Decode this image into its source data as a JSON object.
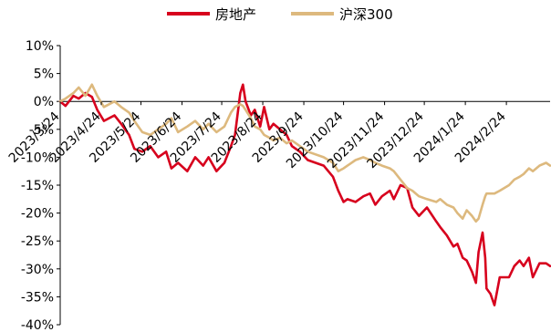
{
  "chart_data": {
    "type": "line",
    "title": "",
    "xlabel": "",
    "ylabel": "",
    "legend_position": "top-center",
    "grid": false,
    "x_ticks": [
      "2023/3/24",
      "2023/4/24",
      "2023/5/24",
      "2023/6/24",
      "2023/7/24",
      "2023/8/24",
      "2023/9/24",
      "2023/10/24",
      "2023/11/24",
      "2023/12/24",
      "2024/1/24",
      "2024/2/24"
    ],
    "y_ticks": [
      "10%",
      "5%",
      "0%",
      "-5%",
      "-10%",
      "-15%",
      "-20%",
      "-25%",
      "-30%",
      "-35%",
      "-40%"
    ],
    "ylim": [
      -40,
      10
    ],
    "x_range": [
      "2023/3/24",
      "2024/3/28"
    ],
    "series": [
      {
        "name": "房地产",
        "color": "#d7001d",
        "points": [
          [
            "2023/3/24",
            0.0
          ],
          [
            "2023/3/28",
            -0.8
          ],
          [
            "2023/4/3",
            1.0
          ],
          [
            "2023/4/7",
            0.5
          ],
          [
            "2023/4/12",
            1.5
          ],
          [
            "2023/4/17",
            0.8
          ],
          [
            "2023/4/21",
            -1.5
          ],
          [
            "2023/4/26",
            -3.5
          ],
          [
            "2023/5/4",
            -2.5
          ],
          [
            "2023/5/9",
            -4.0
          ],
          [
            "2023/5/15",
            -6.0
          ],
          [
            "2023/5/19",
            -8.5
          ],
          [
            "2023/5/25",
            -9.0
          ],
          [
            "2023/5/31",
            -8.0
          ],
          [
            "2023/6/6",
            -10.0
          ],
          [
            "2023/6/12",
            -9.0
          ],
          [
            "2023/6/16",
            -12.0
          ],
          [
            "2023/6/21",
            -11.0
          ],
          [
            "2023/6/28",
            -12.5
          ],
          [
            "2023/7/4",
            -10.0
          ],
          [
            "2023/7/10",
            -11.5
          ],
          [
            "2023/7/14",
            -10.0
          ],
          [
            "2023/7/20",
            -12.5
          ],
          [
            "2023/7/26",
            -11.0
          ],
          [
            "2023/7/31",
            -8.0
          ],
          [
            "2023/8/3",
            -6.0
          ],
          [
            "2023/8/7",
            1.5
          ],
          [
            "2023/8/9",
            3.0
          ],
          [
            "2023/8/11",
            0.0
          ],
          [
            "2023/8/15",
            -2.5
          ],
          [
            "2023/8/18",
            -1.5
          ],
          [
            "2023/8/22",
            -4.5
          ],
          [
            "2023/8/25",
            -1.0
          ],
          [
            "2023/8/29",
            -5.0
          ],
          [
            "2023/9/1",
            -4.0
          ],
          [
            "2023/9/6",
            -5.0
          ],
          [
            "2023/9/11",
            -6.0
          ],
          [
            "2023/9/15",
            -8.0
          ],
          [
            "2023/9/21",
            -9.0
          ],
          [
            "2023/9/27",
            -10.5
          ],
          [
            "2023/10/9",
            -11.5
          ],
          [
            "2023/10/16",
            -13.5
          ],
          [
            "2023/10/20",
            -16.0
          ],
          [
            "2023/10/24",
            -18.0
          ],
          [
            "2023/10/27",
            -17.5
          ],
          [
            "2023/11/2",
            -18.0
          ],
          [
            "2023/11/8",
            -17.0
          ],
          [
            "2023/11/13",
            -16.5
          ],
          [
            "2023/11/17",
            -18.5
          ],
          [
            "2023/11/22",
            -17.0
          ],
          [
            "2023/11/28",
            -16.0
          ],
          [
            "2023/12/1",
            -17.5
          ],
          [
            "2023/12/6",
            -15.0
          ],
          [
            "2023/12/11",
            -15.5
          ],
          [
            "2023/12/15",
            -19.0
          ],
          [
            "2023/12/20",
            -20.5
          ],
          [
            "2023/12/26",
            -19.0
          ],
          [
            "2024/1/2",
            -21.5
          ],
          [
            "2024/1/5",
            -22.5
          ],
          [
            "2024/1/10",
            -24.0
          ],
          [
            "2024/1/15",
            -26.0
          ],
          [
            "2024/1/18",
            -25.5
          ],
          [
            "2024/1/22",
            -28.0
          ],
          [
            "2024/1/25",
            -28.5
          ],
          [
            "2024/1/29",
            -30.5
          ],
          [
            "2024/2/1",
            -32.5
          ],
          [
            "2024/2/3",
            -27.0
          ],
          [
            "2024/2/6",
            -23.5
          ],
          [
            "2024/2/8",
            -28.0
          ],
          [
            "2024/2/9",
            -33.5
          ],
          [
            "2024/2/12",
            -34.5
          ],
          [
            "2024/2/15",
            -36.5
          ],
          [
            "2024/2/19",
            -31.5
          ],
          [
            "2024/2/26",
            -31.5
          ],
          [
            "2024/3/1",
            -29.5
          ],
          [
            "2024/3/5",
            -28.5
          ],
          [
            "2024/3/8",
            -29.5
          ],
          [
            "2024/3/12",
            -28.0
          ],
          [
            "2024/3/15",
            -31.5
          ],
          [
            "2024/3/20",
            -29.0
          ],
          [
            "2024/3/25",
            -29.0
          ],
          [
            "2024/3/28",
            -29.5
          ]
        ]
      },
      {
        "name": "沪深300",
        "color": "#ddb97e",
        "points": [
          [
            "2023/3/24",
            0.0
          ],
          [
            "2023/3/28",
            0.5
          ],
          [
            "2023/4/3",
            1.5
          ],
          [
            "2023/4/7",
            2.5
          ],
          [
            "2023/4/12",
            1.0
          ],
          [
            "2023/4/17",
            3.0
          ],
          [
            "2023/4/21",
            1.0
          ],
          [
            "2023/4/26",
            -1.0
          ],
          [
            "2023/5/4",
            0.0
          ],
          [
            "2023/5/9",
            -1.0
          ],
          [
            "2023/5/15",
            -2.0
          ],
          [
            "2023/5/19",
            -3.5
          ],
          [
            "2023/5/25",
            -5.5
          ],
          [
            "2023/5/31",
            -6.0
          ],
          [
            "2023/6/6",
            -5.0
          ],
          [
            "2023/6/12",
            -4.0
          ],
          [
            "2023/6/16",
            -3.0
          ],
          [
            "2023/6/21",
            -5.5
          ],
          [
            "2023/6/28",
            -4.5
          ],
          [
            "2023/7/4",
            -3.5
          ],
          [
            "2023/7/10",
            -5.0
          ],
          [
            "2023/7/14",
            -4.0
          ],
          [
            "2023/7/20",
            -5.5
          ],
          [
            "2023/7/26",
            -4.5
          ],
          [
            "2023/7/31",
            -2.0
          ],
          [
            "2023/8/3",
            -1.0
          ],
          [
            "2023/8/7",
            -0.5
          ],
          [
            "2023/8/9",
            -0.8
          ],
          [
            "2023/8/11",
            -1.5
          ],
          [
            "2023/8/15",
            -3.0
          ],
          [
            "2023/8/18",
            -4.5
          ],
          [
            "2023/8/22",
            -5.0
          ],
          [
            "2023/8/25",
            -6.0
          ],
          [
            "2023/8/29",
            -6.5
          ],
          [
            "2023/9/1",
            -7.0
          ],
          [
            "2023/9/6",
            -6.5
          ],
          [
            "2023/9/11",
            -7.5
          ],
          [
            "2023/9/15",
            -7.0
          ],
          [
            "2023/9/21",
            -8.0
          ],
          [
            "2023/9/27",
            -9.0
          ],
          [
            "2023/10/9",
            -10.0
          ],
          [
            "2023/10/16",
            -11.0
          ],
          [
            "2023/10/20",
            -12.5
          ],
          [
            "2023/10/24",
            -12.0
          ],
          [
            "2023/10/27",
            -11.5
          ],
          [
            "2023/11/2",
            -10.5
          ],
          [
            "2023/11/8",
            -10.0
          ],
          [
            "2023/11/13",
            -10.5
          ],
          [
            "2023/11/17",
            -11.0
          ],
          [
            "2023/11/22",
            -11.5
          ],
          [
            "2023/11/28",
            -12.0
          ],
          [
            "2023/12/1",
            -12.5
          ],
          [
            "2023/12/6",
            -14.0
          ],
          [
            "2023/12/11",
            -15.5
          ],
          [
            "2023/12/15",
            -16.0
          ],
          [
            "2023/12/20",
            -17.0
          ],
          [
            "2023/12/26",
            -17.5
          ],
          [
            "2024/1/2",
            -18.0
          ],
          [
            "2024/1/5",
            -17.5
          ],
          [
            "2024/1/10",
            -18.5
          ],
          [
            "2024/1/15",
            -19.0
          ],
          [
            "2024/1/18",
            -20.0
          ],
          [
            "2024/1/22",
            -21.0
          ],
          [
            "2024/1/25",
            -19.5
          ],
          [
            "2024/1/29",
            -20.5
          ],
          [
            "2024/2/1",
            -21.5
          ],
          [
            "2024/2/3",
            -21.0
          ],
          [
            "2024/2/6",
            -18.5
          ],
          [
            "2024/2/8",
            -17.0
          ],
          [
            "2024/2/9",
            -16.5
          ],
          [
            "2024/2/12",
            -16.5
          ],
          [
            "2024/2/15",
            -16.5
          ],
          [
            "2024/2/19",
            -16.0
          ],
          [
            "2024/2/26",
            -15.0
          ],
          [
            "2024/3/1",
            -14.0
          ],
          [
            "2024/3/5",
            -13.5
          ],
          [
            "2024/3/8",
            -13.0
          ],
          [
            "2024/3/12",
            -12.0
          ],
          [
            "2024/3/15",
            -12.5
          ],
          [
            "2024/3/20",
            -11.5
          ],
          [
            "2024/3/25",
            -11.0
          ],
          [
            "2024/3/28",
            -11.5
          ]
        ]
      }
    ]
  }
}
